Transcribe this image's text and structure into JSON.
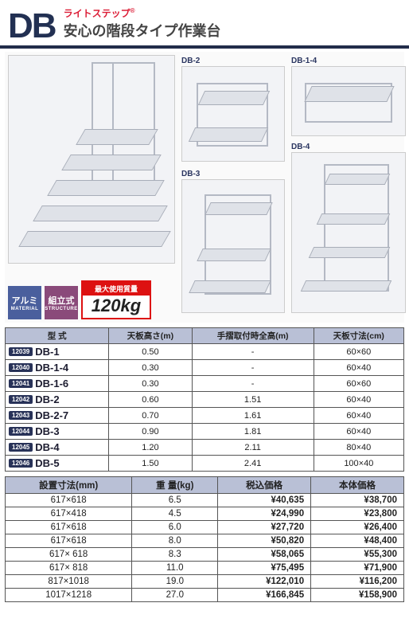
{
  "header": {
    "logo": "DB",
    "brand": "ライトステップ",
    "brand_mark": "®",
    "subtitle": "安心の階段タイプ作業台"
  },
  "product_labels": {
    "p2": "DB-2",
    "p14": "DB-1-4",
    "p3": "DB-3",
    "p4": "DB-4"
  },
  "badges": {
    "aluminum_jp": "アルミ",
    "aluminum_en": "MATERIAL",
    "assembly_jp": "組立式",
    "assembly_en": "STRUCTURE",
    "load_label": "最大使用質量",
    "load_value": "120kg"
  },
  "table1": {
    "headers": [
      "型 式",
      "天板高さ(m)",
      "手摺取付時全高(m)",
      "天板寸法(cm)"
    ],
    "rows": [
      {
        "sku": "12039",
        "model": "DB-1",
        "h": "0.50",
        "rail": "-",
        "top": "60×60"
      },
      {
        "sku": "12040",
        "model": "DB-1-4",
        "h": "0.30",
        "rail": "-",
        "top": "60×40"
      },
      {
        "sku": "12041",
        "model": "DB-1-6",
        "h": "0.30",
        "rail": "-",
        "top": "60×60"
      },
      {
        "sku": "12042",
        "model": "DB-2",
        "h": "0.60",
        "rail": "1.51",
        "top": "60×40"
      },
      {
        "sku": "12043",
        "model": "DB-2-7",
        "h": "0.70",
        "rail": "1.61",
        "top": "60×40"
      },
      {
        "sku": "12044",
        "model": "DB-3",
        "h": "0.90",
        "rail": "1.81",
        "top": "60×40"
      },
      {
        "sku": "12045",
        "model": "DB-4",
        "h": "1.20",
        "rail": "2.11",
        "top": "80×40"
      },
      {
        "sku": "12046",
        "model": "DB-5",
        "h": "1.50",
        "rail": "2.41",
        "top": "100×40"
      }
    ]
  },
  "table2": {
    "headers": [
      "設置寸法(mm)",
      "重 量(kg)",
      "税込価格",
      "本体価格"
    ],
    "rows": [
      {
        "dim": "617×618",
        "wt": "6.5",
        "inc": "¥40,635",
        "exc": "¥38,700"
      },
      {
        "dim": "617×418",
        "wt": "4.5",
        "inc": "¥24,990",
        "exc": "¥23,800"
      },
      {
        "dim": "617×618",
        "wt": "6.0",
        "inc": "¥27,720",
        "exc": "¥26,400"
      },
      {
        "dim": "617×618",
        "wt": "8.0",
        "inc": "¥50,820",
        "exc": "¥48,400"
      },
      {
        "dim": "617× 618",
        "wt": "8.3",
        "inc": "¥58,065",
        "exc": "¥55,300"
      },
      {
        "dim": "617× 818",
        "wt": "11.0",
        "inc": "¥75,495",
        "exc": "¥71,900"
      },
      {
        "dim": "817×1018",
        "wt": "19.0",
        "inc": "¥122,010",
        "exc": "¥116,200"
      },
      {
        "dim": "1017×1218",
        "wt": "27.0",
        "inc": "¥166,845",
        "exc": "¥158,900"
      }
    ]
  }
}
